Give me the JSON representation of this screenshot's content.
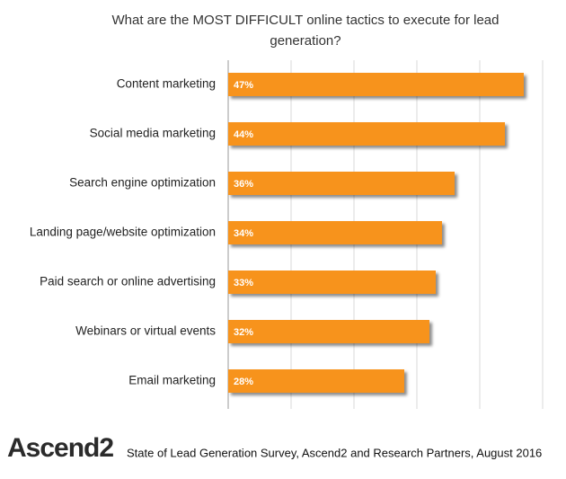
{
  "chart_data": {
    "type": "bar",
    "orientation": "horizontal",
    "title": "What are the MOST DIFFICULT online tactics to execute for lead generation?",
    "categories": [
      "Content marketing",
      "Social media marketing",
      "Search engine optimization",
      "Landing page/website optimization",
      "Paid search or online advertising",
      "Webinars or virtual events",
      "Email marketing"
    ],
    "values": [
      47,
      44,
      36,
      34,
      33,
      32,
      28
    ],
    "value_labels": [
      "47%",
      "44%",
      "36%",
      "34%",
      "33%",
      "32%",
      "28%"
    ],
    "color": "#f7931e",
    "xlim": [
      0,
      50
    ],
    "xticks": [
      0,
      10,
      20,
      30,
      40,
      50
    ],
    "grid": true,
    "logo": "Ascend2",
    "source": "State of Lead Generation Survey, Ascend2 and Research Partners, August 2016"
  }
}
